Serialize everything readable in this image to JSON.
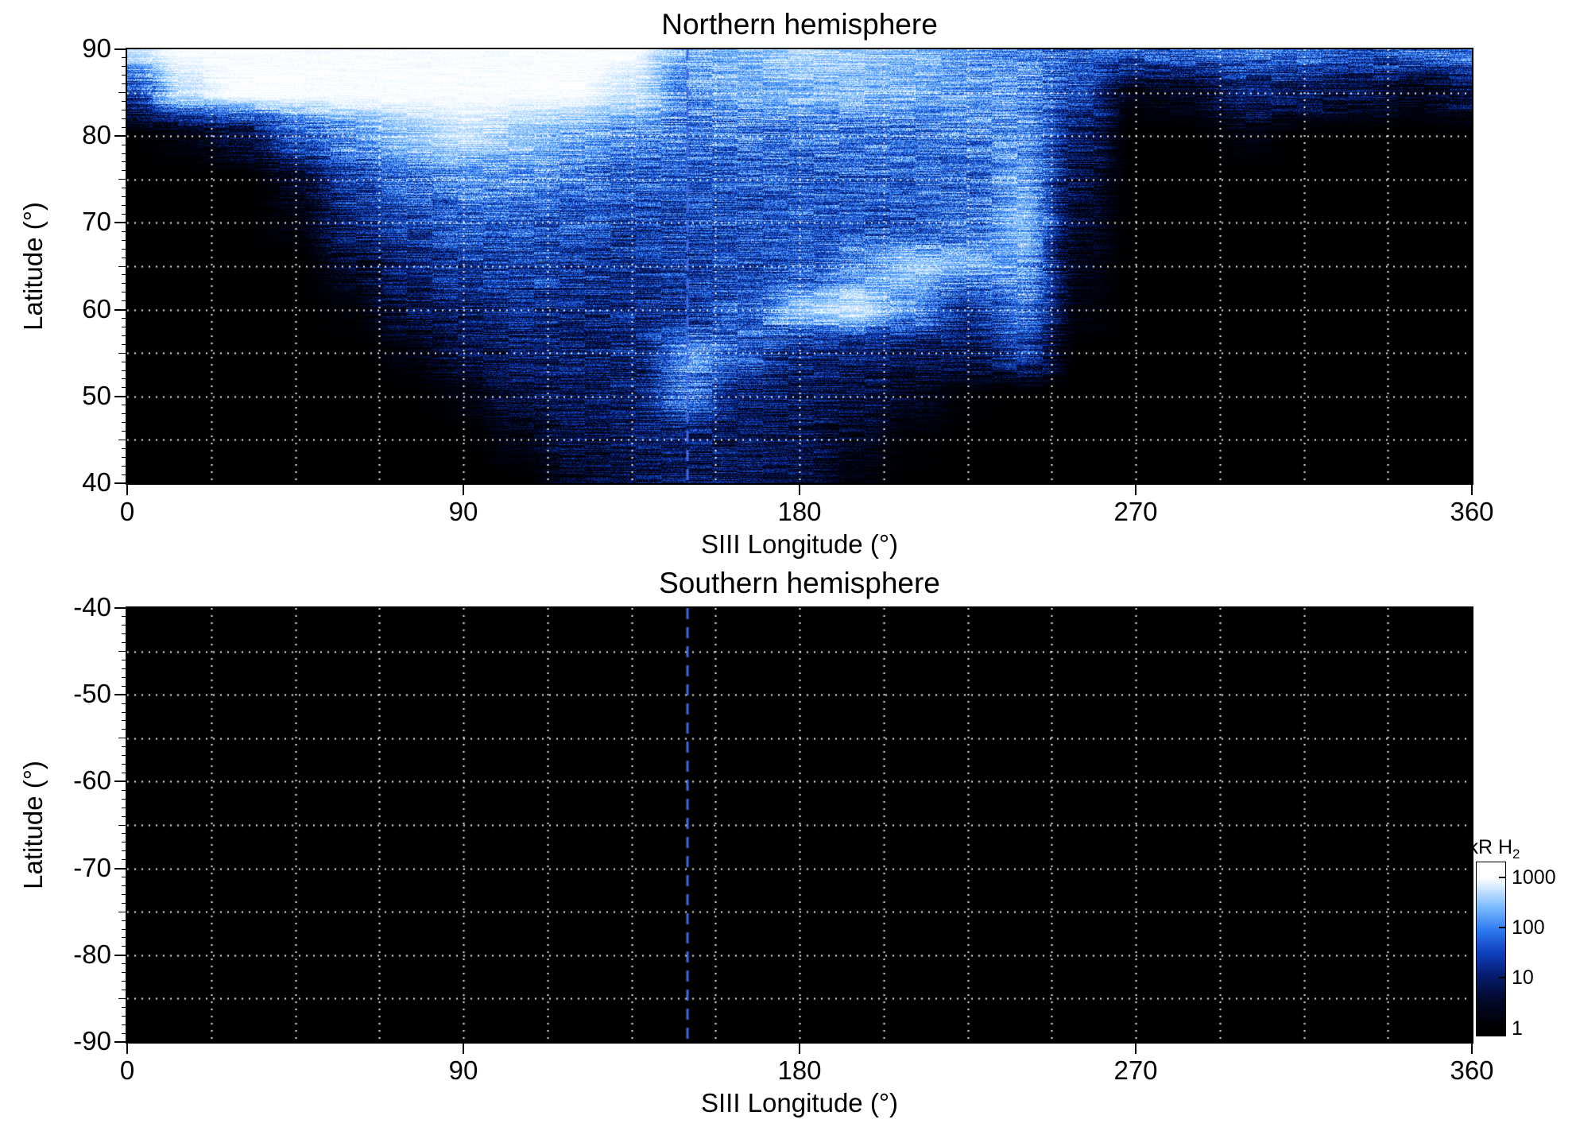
{
  "figure": {
    "background": "#ffffff",
    "text_color": "#000000"
  },
  "colorbar": {
    "label_main": "kR H",
    "label_sub": "2",
    "ticks": [
      1000,
      100,
      10,
      1
    ],
    "scale": "log",
    "top_color": "#ffffff",
    "bottom_color": "#000000"
  },
  "chart_data": [
    {
      "type": "heatmap",
      "hemisphere": "north",
      "title": "Northern hemisphere",
      "xlabel": "SIII Longitude (°)",
      "ylabel": "Latitude (°)",
      "xlim": [
        0,
        360
      ],
      "ylim": [
        40,
        90
      ],
      "xticks": [
        0,
        90,
        180,
        270,
        360
      ],
      "yticks": [
        90,
        80,
        70,
        60,
        50,
        40
      ],
      "grid": {
        "style": "dotted",
        "color": "#ffffff",
        "x_step_deg": 22.5,
        "y_step_deg": 5
      },
      "marker_line": {
        "x": 150,
        "style": "dashed",
        "color": "#4169e1"
      },
      "value_units": "kR H2, log color scale 1-1000",
      "lon_grid_deg": [
        0,
        15,
        30,
        45,
        60,
        75,
        90,
        105,
        120,
        135,
        150,
        165,
        180,
        195,
        210,
        225,
        240,
        255,
        270,
        285,
        300,
        315,
        330,
        345,
        360
      ],
      "lat_grid_deg": [
        90,
        85,
        80,
        75,
        70,
        65,
        60,
        55,
        50,
        45,
        40
      ],
      "log10_intensity_rows_by_lat": [
        [
          2.8,
          3.0,
          3.0,
          3.0,
          3.0,
          3.0,
          3.0,
          3.0,
          3.0,
          3.0,
          2.4,
          2.5,
          2.7,
          2.6,
          2.5,
          2.3,
          2.1,
          1.9,
          1.8,
          1.8,
          2.0,
          1.8,
          1.6,
          1.9,
          2.1
        ],
        [
          1.5,
          2.8,
          3.0,
          3.0,
          3.0,
          3.0,
          3.0,
          3.0,
          3.0,
          2.8,
          2.2,
          2.4,
          2.5,
          2.5,
          2.4,
          2.3,
          2.2,
          1.6,
          0.3,
          0.4,
          1.1,
          0.9,
          0.7,
          0.4,
          0.7
        ],
        [
          0,
          0.2,
          0.7,
          1.7,
          2.2,
          2.6,
          2.8,
          2.6,
          2.4,
          2.2,
          2.0,
          2.0,
          2.0,
          2.0,
          2.0,
          2.1,
          2.2,
          1.0,
          0,
          0,
          0.2,
          0,
          0,
          0,
          0
        ],
        [
          0,
          0,
          0,
          0.4,
          1.5,
          2.0,
          2.2,
          2.2,
          2.0,
          1.8,
          1.7,
          1.8,
          1.8,
          1.8,
          1.8,
          1.9,
          2.3,
          0.7,
          0,
          0,
          0,
          0,
          0,
          0,
          0
        ],
        [
          0,
          0,
          0,
          0.2,
          1.1,
          1.5,
          1.8,
          1.8,
          1.7,
          1.5,
          1.6,
          1.7,
          1.8,
          1.7,
          1.7,
          2.0,
          2.5,
          0.5,
          0,
          0,
          0,
          0,
          0,
          0,
          0
        ],
        [
          0,
          0,
          0,
          0,
          0.5,
          1.1,
          1.4,
          1.5,
          1.4,
          1.3,
          1.5,
          1.6,
          1.7,
          2.2,
          2.6,
          2.4,
          2.3,
          0.3,
          0,
          0,
          0,
          0,
          0,
          0,
          0
        ],
        [
          0,
          0,
          0,
          0,
          0.1,
          0.7,
          1.1,
          1.2,
          1.2,
          1.2,
          1.3,
          1.8,
          2.6,
          2.8,
          2.2,
          1.2,
          2.0,
          0.2,
          0,
          0,
          0,
          0,
          0,
          0,
          0
        ],
        [
          0,
          0,
          0,
          0,
          0,
          0.2,
          0.7,
          1.0,
          1.0,
          1.1,
          2.2,
          1.8,
          1.2,
          1.0,
          0.9,
          0.8,
          1.4,
          0,
          0,
          0,
          0,
          0,
          0,
          0,
          0
        ],
        [
          0,
          0,
          0,
          0,
          0,
          0,
          0.2,
          0.7,
          0.9,
          1.0,
          2.0,
          1.1,
          0.9,
          0.8,
          0.4,
          0.1,
          0,
          0,
          0,
          0,
          0,
          0,
          0,
          0,
          0
        ],
        [
          0,
          0,
          0,
          0,
          0,
          0,
          0,
          0.3,
          0.7,
          0.9,
          1.0,
          0.9,
          0.8,
          0.4,
          0.1,
          0,
          0,
          0,
          0,
          0,
          0,
          0,
          0,
          0,
          0
        ],
        [
          0,
          0,
          0,
          0,
          0,
          0,
          0,
          0,
          0.4,
          0.7,
          0.9,
          0.8,
          0.6,
          0.2,
          0,
          0,
          0,
          0,
          0,
          0,
          0,
          0,
          0,
          0,
          0
        ]
      ]
    },
    {
      "type": "heatmap",
      "hemisphere": "south",
      "title": "Southern hemisphere",
      "xlabel": "SIII Longitude (°)",
      "ylabel": "Latitude (°)",
      "xlim": [
        0,
        360
      ],
      "ylim": [
        -90,
        -40
      ],
      "xticks": [
        0,
        90,
        180,
        270,
        360
      ],
      "yticks": [
        -40,
        -50,
        -60,
        -70,
        -80,
        -90
      ],
      "grid": {
        "style": "dotted",
        "color": "#ffffff",
        "x_step_deg": 22.5,
        "y_step_deg": 5
      },
      "marker_line": {
        "x": 150,
        "style": "dashed",
        "color": "#4169e1"
      },
      "value_units": "kR H2, log color scale 1-1000",
      "uniform_log10_intensity": 0
    }
  ]
}
